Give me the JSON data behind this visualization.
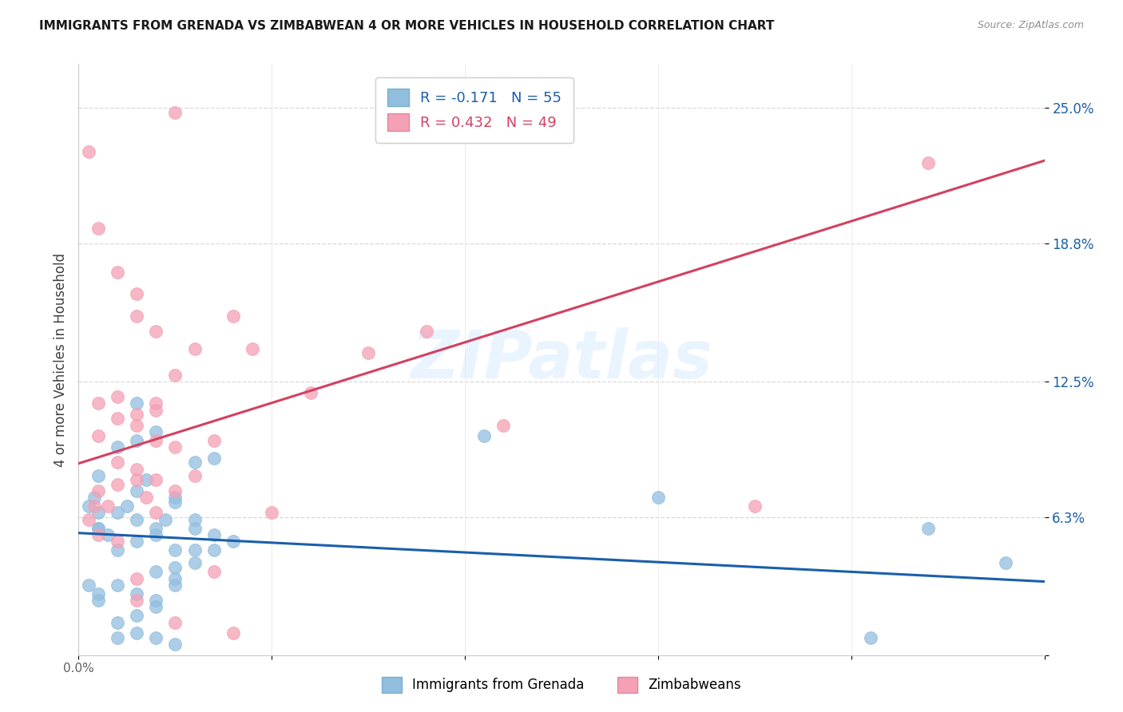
{
  "title": "IMMIGRANTS FROM GRENADA VS ZIMBABWEAN 4 OR MORE VEHICLES IN HOUSEHOLD CORRELATION CHART",
  "source": "Source: ZipAtlas.com",
  "ylabel": "4 or more Vehicles in Household",
  "x_lim": [
    0.0,
    0.05
  ],
  "y_lim": [
    0.0,
    0.27
  ],
  "y_ticks": [
    0.0,
    0.063,
    0.125,
    0.188,
    0.25
  ],
  "y_tick_labels": [
    "",
    "6.3%",
    "12.5%",
    "18.8%",
    "25.0%"
  ],
  "x_ticks": [
    0.0,
    0.01,
    0.02,
    0.03,
    0.04,
    0.05
  ],
  "blue_color": "#92bede",
  "pink_color": "#f4a0b5",
  "blue_line_color": "#1a5faa",
  "pink_line_color": "#d44060",
  "watermark": "ZIPatlas",
  "blue_R": -0.171,
  "pink_R": 0.432,
  "blue_N": 55,
  "pink_N": 49,
  "legend_labels_bottom": [
    "Immigrants from Grenada",
    "Zimbabweans"
  ],
  "blue_scatter_x": [
    0.0005,
    0.0008,
    0.001,
    0.001,
    0.0015,
    0.002,
    0.002,
    0.0025,
    0.003,
    0.003,
    0.003,
    0.0035,
    0.004,
    0.004,
    0.0045,
    0.005,
    0.005,
    0.005,
    0.006,
    0.006,
    0.006,
    0.007,
    0.007,
    0.008,
    0.001,
    0.001,
    0.002,
    0.003,
    0.004,
    0.005,
    0.001,
    0.002,
    0.003,
    0.004,
    0.005,
    0.006,
    0.002,
    0.003,
    0.004,
    0.005,
    0.021,
    0.03,
    0.041,
    0.044,
    0.048,
    0.0005,
    0.001,
    0.002,
    0.003,
    0.004,
    0.003,
    0.004,
    0.005,
    0.006,
    0.007
  ],
  "blue_scatter_y": [
    0.068,
    0.072,
    0.058,
    0.065,
    0.055,
    0.048,
    0.065,
    0.068,
    0.052,
    0.062,
    0.075,
    0.08,
    0.058,
    0.055,
    0.062,
    0.04,
    0.048,
    0.07,
    0.062,
    0.088,
    0.048,
    0.09,
    0.055,
    0.052,
    0.082,
    0.058,
    0.095,
    0.098,
    0.038,
    0.072,
    0.028,
    0.032,
    0.028,
    0.025,
    0.032,
    0.042,
    0.008,
    0.01,
    0.008,
    0.005,
    0.1,
    0.072,
    0.008,
    0.058,
    0.042,
    0.032,
    0.025,
    0.015,
    0.018,
    0.022,
    0.115,
    0.102,
    0.035,
    0.058,
    0.048
  ],
  "pink_scatter_x": [
    0.0005,
    0.0008,
    0.001,
    0.001,
    0.0015,
    0.002,
    0.002,
    0.003,
    0.003,
    0.0035,
    0.004,
    0.004,
    0.005,
    0.006,
    0.007,
    0.001,
    0.002,
    0.003,
    0.004,
    0.005,
    0.002,
    0.003,
    0.004,
    0.005,
    0.0005,
    0.001,
    0.002,
    0.003,
    0.003,
    0.005,
    0.008,
    0.01,
    0.012,
    0.015,
    0.018,
    0.022,
    0.003,
    0.004,
    0.006,
    0.007,
    0.035,
    0.044,
    0.005,
    0.008,
    0.009,
    0.001,
    0.002,
    0.003,
    0.004
  ],
  "pink_scatter_y": [
    0.062,
    0.068,
    0.055,
    0.075,
    0.068,
    0.078,
    0.052,
    0.08,
    0.085,
    0.072,
    0.08,
    0.065,
    0.075,
    0.082,
    0.038,
    0.115,
    0.108,
    0.11,
    0.115,
    0.095,
    0.118,
    0.105,
    0.112,
    0.128,
    0.23,
    0.195,
    0.175,
    0.165,
    0.025,
    0.015,
    0.01,
    0.065,
    0.12,
    0.138,
    0.148,
    0.105,
    0.155,
    0.148,
    0.14,
    0.098,
    0.068,
    0.225,
    0.248,
    0.155,
    0.14,
    0.1,
    0.088,
    0.035,
    0.098
  ]
}
